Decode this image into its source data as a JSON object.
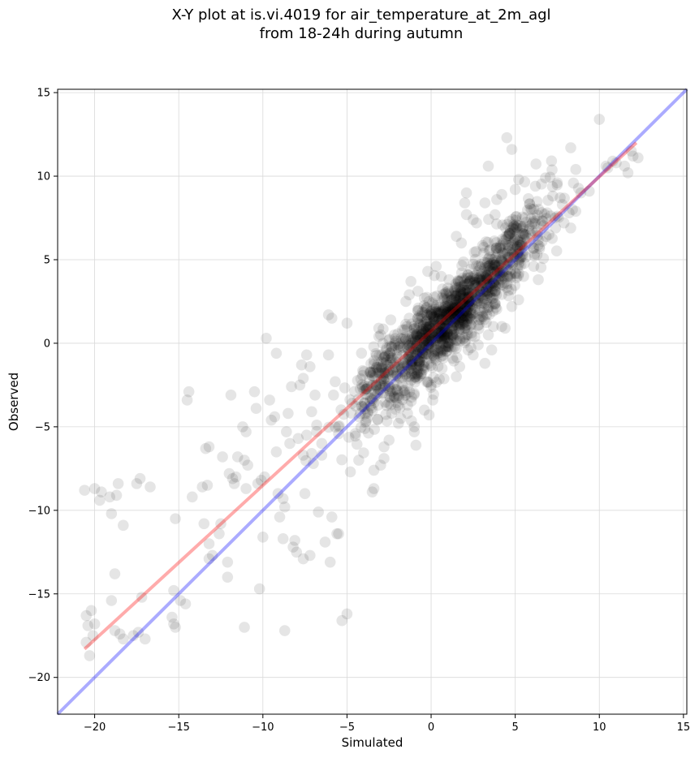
{
  "chart_data": {
    "type": "scatter",
    "title_line1": "X-Y plot at is.vi.4019 for air_temperature_at_2m_agl",
    "title_line2": "from 18-24h during autumn",
    "xlabel": "Simulated",
    "ylabel": "Observed",
    "xlim": [
      -22.2,
      15.2
    ],
    "ylim": [
      -22.2,
      15.2
    ],
    "xticks": [
      -20,
      -15,
      -10,
      -5,
      0,
      5,
      10,
      15
    ],
    "yticks": [
      -20,
      -15,
      -10,
      -5,
      0,
      5,
      10,
      15
    ],
    "tick_labels": [
      "−20",
      "−15",
      "−10",
      "−5",
      "0",
      "5",
      "10",
      "15"
    ],
    "grid": true,
    "point_color": "#000000",
    "identity_line": {
      "color": "#0000ff",
      "x": [
        -22.2,
        15.2
      ],
      "y": [
        -22.2,
        15.2
      ]
    },
    "fit_line": {
      "color": "#ff0000",
      "x": [
        -20.6,
        12.2
      ],
      "y": [
        -18.3,
        12.0
      ]
    },
    "outlier_points": [
      [
        -20.6,
        -8.8
      ],
      [
        -20.0,
        -8.7
      ],
      [
        -19.6,
        -8.9
      ],
      [
        -19.7,
        -9.4
      ],
      [
        -19.1,
        -9.2
      ],
      [
        -18.7,
        -9.1
      ],
      [
        -18.6,
        -8.4
      ],
      [
        -18.3,
        -10.9
      ],
      [
        -19.0,
        -10.2
      ],
      [
        -17.5,
        -8.4
      ],
      [
        -17.3,
        -8.1
      ],
      [
        -16.7,
        -8.6
      ],
      [
        -20.5,
        -16.3
      ],
      [
        -20.4,
        -16.9
      ],
      [
        -20.2,
        -16.0
      ],
      [
        -20.0,
        -16.8
      ],
      [
        -20.1,
        -17.5
      ],
      [
        -20.5,
        -17.9
      ],
      [
        -20.3,
        -18.7
      ],
      [
        -19.0,
        -15.4
      ],
      [
        -18.8,
        -13.8
      ],
      [
        -18.8,
        -17.2
      ],
      [
        -18.5,
        -17.4
      ],
      [
        -18.3,
        -17.7
      ],
      [
        -17.7,
        -17.5
      ],
      [
        -17.4,
        -17.3
      ],
      [
        -17.2,
        -15.2
      ],
      [
        -17.0,
        -17.7
      ],
      [
        -15.2,
        -10.5
      ],
      [
        -15.3,
        -14.8
      ],
      [
        -14.9,
        -15.4
      ],
      [
        -14.6,
        -15.6
      ],
      [
        -15.4,
        -16.4
      ],
      [
        -15.3,
        -16.8
      ],
      [
        -15.2,
        -17.0
      ],
      [
        -14.5,
        -3.4
      ],
      [
        -14.4,
        -2.9
      ],
      [
        -14.2,
        -9.2
      ],
      [
        -13.6,
        -8.6
      ],
      [
        -13.4,
        -6.3
      ],
      [
        -13.2,
        -6.2
      ],
      [
        -13.3,
        -8.5
      ],
      [
        -13.5,
        -10.8
      ],
      [
        -13.2,
        -12.0
      ],
      [
        -13.2,
        -12.9
      ],
      [
        -13.0,
        -12.7
      ],
      [
        -12.6,
        -11.4
      ],
      [
        -12.5,
        -10.8
      ],
      [
        -12.4,
        -6.8
      ],
      [
        -12.0,
        -7.8
      ],
      [
        -11.9,
        -3.1
      ],
      [
        -11.8,
        -8.1
      ],
      [
        -11.7,
        -8.4
      ],
      [
        -11.6,
        -8.0
      ],
      [
        -12.1,
        -13.1
      ],
      [
        -12.1,
        -14.0
      ],
      [
        -11.5,
        -6.8
      ],
      [
        -11.2,
        -5.0
      ],
      [
        -11.0,
        -5.3
      ],
      [
        -11.1,
        -7.0
      ],
      [
        -10.9,
        -7.3
      ],
      [
        -11.0,
        -8.7
      ],
      [
        -11.1,
        -17.0
      ],
      [
        -10.5,
        -2.9
      ],
      [
        -10.4,
        -3.9
      ],
      [
        -10.3,
        -8.4
      ],
      [
        -10.1,
        -8.2
      ],
      [
        -10.2,
        -14.7
      ],
      [
        -10.0,
        -11.6
      ],
      [
        -9.9,
        -8.0
      ],
      [
        -9.8,
        0.3
      ],
      [
        -9.6,
        -3.4
      ],
      [
        -9.5,
        -4.6
      ],
      [
        -9.3,
        -4.4
      ],
      [
        -9.2,
        -0.6
      ],
      [
        -9.2,
        -6.5
      ],
      [
        -9.1,
        -9.0
      ],
      [
        -9.0,
        -10.4
      ],
      [
        -8.8,
        -9.3
      ],
      [
        -8.7,
        -9.8
      ],
      [
        -8.8,
        -11.7
      ],
      [
        -8.7,
        -17.2
      ],
      [
        -8.6,
        -5.3
      ],
      [
        -8.5,
        -4.2
      ],
      [
        -8.4,
        -6.0
      ],
      [
        -8.3,
        -2.6
      ],
      [
        -8.2,
        -12.2
      ],
      [
        -8.0,
        -12.5
      ],
      [
        -8.1,
        -11.8
      ],
      [
        -7.9,
        -5.7
      ],
      [
        -7.8,
        -2.5
      ],
      [
        -7.7,
        -1.3
      ],
      [
        -7.6,
        -2.1
      ],
      [
        -7.6,
        -6.7
      ],
      [
        -7.5,
        -9.0
      ],
      [
        -7.6,
        -12.9
      ],
      [
        -7.4,
        -0.7
      ],
      [
        -7.4,
        -5.5
      ],
      [
        -7.2,
        -1.4
      ],
      [
        -7.2,
        -12.7
      ],
      [
        -7.1,
        -6.6
      ],
      [
        -7.0,
        -7.2
      ],
      [
        -7.1,
        -4.1
      ],
      [
        -6.9,
        -3.1
      ],
      [
        -6.8,
        -4.9
      ],
      [
        -6.7,
        -10.1
      ],
      [
        -6.5,
        -6.0
      ],
      [
        -6.5,
        -6.7
      ],
      [
        -6.3,
        -11.9
      ],
      [
        -6.1,
        -0.7
      ],
      [
        -6.1,
        1.7
      ],
      [
        -5.9,
        1.5
      ],
      [
        -5.9,
        -10.4
      ],
      [
        -5.8,
        -3.1
      ],
      [
        -5.7,
        -2.3
      ],
      [
        -5.6,
        -11.4
      ],
      [
        -5.5,
        -11.4
      ],
      [
        -5.3,
        -16.6
      ],
      [
        -5.0,
        -16.2
      ],
      [
        -5.0,
        1.2
      ],
      [
        -6.0,
        -13.1
      ],
      [
        -4.8,
        -7.7
      ],
      [
        -4.5,
        -5.4
      ],
      [
        -4.3,
        -7.0
      ],
      [
        -4.2,
        -4.2
      ],
      [
        -4.0,
        -3.8
      ],
      [
        -3.5,
        -8.9
      ],
      [
        -3.4,
        -8.7
      ],
      [
        -3.4,
        -7.6
      ],
      [
        -3.0,
        -7.3
      ],
      [
        -2.8,
        -6.9
      ],
      [
        -2.8,
        -6.2
      ],
      [
        -2.5,
        -5.8
      ],
      [
        -1.8,
        -4.5
      ],
      [
        -1.4,
        -4.2
      ],
      [
        -1.0,
        -5.3
      ],
      [
        -0.9,
        -6.1
      ],
      [
        -0.4,
        -4.0
      ],
      [
        0.1,
        -3.4
      ],
      [
        -2.2,
        -3.2
      ],
      [
        -1.4,
        -3.7
      ],
      [
        -1.0,
        -5.0
      ],
      [
        0.0,
        -2.5
      ],
      [
        -3.3,
        -2.5
      ],
      [
        -1.0,
        -3.0
      ],
      [
        -3.0,
        0.5
      ],
      [
        -1.7,
        0.8
      ],
      [
        -2.4,
        1.4
      ],
      [
        -1.3,
        1.5
      ],
      [
        -1.5,
        2.5
      ],
      [
        -1.3,
        2.9
      ],
      [
        -1.2,
        3.7
      ],
      [
        -0.4,
        2.7
      ],
      [
        -0.2,
        4.3
      ],
      [
        0.3,
        4.6
      ],
      [
        0.6,
        4.0
      ],
      [
        1.5,
        6.4
      ],
      [
        1.8,
        6.0
      ],
      [
        2.1,
        7.7
      ],
      [
        2.0,
        8.4
      ],
      [
        2.1,
        9.0
      ],
      [
        2.5,
        7.4
      ],
      [
        2.7,
        7.2
      ],
      [
        3.2,
        8.4
      ],
      [
        3.4,
        10.6
      ],
      [
        3.9,
        8.6
      ],
      [
        4.2,
        8.9
      ],
      [
        4.5,
        12.3
      ],
      [
        4.8,
        11.6
      ],
      [
        5.2,
        9.8
      ],
      [
        5.0,
        9.2
      ],
      [
        6.2,
        9.4
      ],
      [
        6.8,
        9.9
      ],
      [
        7.5,
        9.6
      ],
      [
        8.3,
        11.7
      ],
      [
        8.6,
        10.4
      ],
      [
        10.0,
        13.4
      ],
      [
        10.4,
        10.6
      ],
      [
        10.5,
        10.5
      ],
      [
        10.8,
        10.9
      ],
      [
        11.5,
        10.6
      ],
      [
        11.7,
        10.2
      ],
      [
        12.0,
        11.2
      ],
      [
        12.3,
        11.1
      ],
      [
        11.9,
        11.5
      ],
      [
        11.0,
        10.8
      ],
      [
        3.7,
        1.0
      ],
      [
        3.4,
        0.5
      ],
      [
        3.6,
        -0.4
      ],
      [
        3.2,
        -1.2
      ],
      [
        2.8,
        -0.1
      ],
      [
        2.5,
        -0.7
      ],
      [
        2.2,
        -0.4
      ],
      [
        2.1,
        0.5
      ],
      [
        1.7,
        -1.4
      ],
      [
        1.5,
        -2.0
      ],
      [
        4.4,
        0.9
      ],
      [
        4.2,
        1.0
      ],
      [
        4.8,
        2.2
      ],
      [
        5.2,
        2.6
      ],
      [
        5.0,
        4.2
      ],
      [
        5.5,
        4.0
      ],
      [
        6.1,
        4.6
      ],
      [
        6.3,
        5.3
      ],
      [
        6.6,
        6.1
      ],
      [
        7.0,
        6.5
      ],
      [
        7.4,
        6.9
      ],
      [
        7.5,
        7.6
      ],
      [
        7.9,
        7.2
      ],
      [
        8.2,
        7.8
      ],
      [
        8.4,
        8.0
      ],
      [
        8.6,
        7.9
      ],
      [
        8.3,
        6.9
      ],
      [
        8.9,
        9.0
      ],
      [
        9.4,
        9.1
      ],
      [
        7.8,
        8.3
      ],
      [
        6.9,
        7.8
      ],
      [
        5.7,
        6.3
      ],
      [
        5.5,
        7.0
      ],
      [
        4.9,
        6.0
      ],
      [
        4.6,
        5.2
      ]
    ]
  }
}
